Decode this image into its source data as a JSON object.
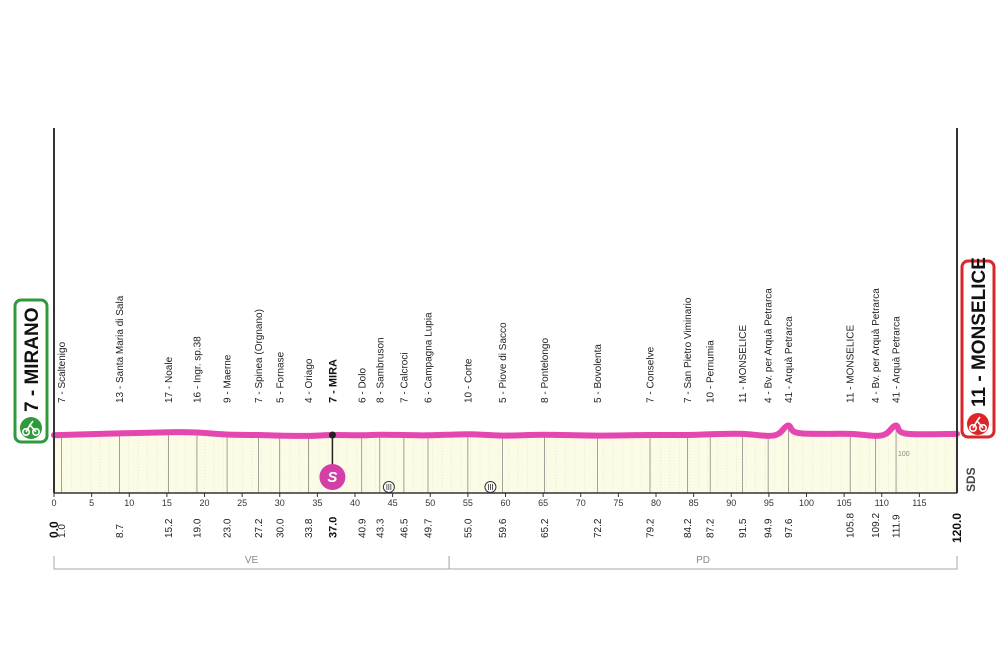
{
  "colors": {
    "profile_line": "#e447b0",
    "start_box": "#2f9a3b",
    "finish_box": "#d8262b",
    "sprint_badge": "#d23fa8",
    "area_fill": "#fbfbe6",
    "axis": "#333333",
    "region_line": "#aaaaaa"
  },
  "start": {
    "label": "7 - MIRANO",
    "km_label": "0.0",
    "icon": "cyclist-icon"
  },
  "finish": {
    "label": "11 - MONSELICE",
    "km_label": "120.0",
    "icon": "finish-cyclist-icon"
  },
  "sprint": {
    "badge": "S",
    "label": "7 - MIRA",
    "km_label": "37.0"
  },
  "logo_text": "SDS",
  "altitude_label": "100",
  "regions": [
    {
      "label": "VE",
      "from_km": 0,
      "to_km": 52.5
    },
    {
      "label": "PD",
      "from_km": 52.5,
      "to_km": 120
    }
  ],
  "chart_data": {
    "type": "area",
    "title": "",
    "xlabel": "",
    "ylabel": "",
    "xlim": [
      0,
      120
    ],
    "x_ticks": [
      0,
      5,
      10,
      15,
      20,
      25,
      30,
      35,
      40,
      45,
      50,
      55,
      60,
      65,
      70,
      75,
      80,
      85,
      90,
      95,
      100,
      105,
      110,
      115
    ],
    "profile": [
      {
        "km": 0,
        "alt": 7
      },
      {
        "km": 1.0,
        "alt": 7
      },
      {
        "km": 8.7,
        "alt": 13
      },
      {
        "km": 15.2,
        "alt": 17
      },
      {
        "km": 19.0,
        "alt": 16
      },
      {
        "km": 23.0,
        "alt": 9
      },
      {
        "km": 27.2,
        "alt": 7
      },
      {
        "km": 30.0,
        "alt": 5
      },
      {
        "km": 33.8,
        "alt": 4
      },
      {
        "km": 37.0,
        "alt": 7
      },
      {
        "km": 40.9,
        "alt": 6
      },
      {
        "km": 43.3,
        "alt": 8
      },
      {
        "km": 46.5,
        "alt": 7
      },
      {
        "km": 49.7,
        "alt": 6
      },
      {
        "km": 55.0,
        "alt": 10
      },
      {
        "km": 59.6,
        "alt": 5
      },
      {
        "km": 65.2,
        "alt": 8
      },
      {
        "km": 72.2,
        "alt": 5
      },
      {
        "km": 79.2,
        "alt": 7
      },
      {
        "km": 84.2,
        "alt": 7
      },
      {
        "km": 87.2,
        "alt": 10
      },
      {
        "km": 91.5,
        "alt": 11
      },
      {
        "km": 94.9,
        "alt": 4
      },
      {
        "km": 96.3,
        "alt": 12
      },
      {
        "km": 97.6,
        "alt": 41
      },
      {
        "km": 99.0,
        "alt": 14
      },
      {
        "km": 105.8,
        "alt": 11
      },
      {
        "km": 109.2,
        "alt": 4
      },
      {
        "km": 110.6,
        "alt": 12
      },
      {
        "km": 111.9,
        "alt": 41
      },
      {
        "km": 113.2,
        "alt": 12
      },
      {
        "km": 120.0,
        "alt": 11
      }
    ],
    "waypoints": [
      {
        "km": 1.0,
        "km_label": "1.0",
        "label": "7 - Scaltenigo"
      },
      {
        "km": 8.7,
        "km_label": "8.7",
        "label": "13 - Santa Maria di Sala"
      },
      {
        "km": 15.2,
        "km_label": "15.2",
        "label": "17 - Noale"
      },
      {
        "km": 19.0,
        "km_label": "19.0",
        "label": "16 - Ingr. sp.38"
      },
      {
        "km": 23.0,
        "km_label": "23.0",
        "label": "9 - Maerne"
      },
      {
        "km": 27.2,
        "km_label": "27.2",
        "label": "7 - Spinea (Orgnano)"
      },
      {
        "km": 30.0,
        "km_label": "30.0",
        "label": "5 - Fornase"
      },
      {
        "km": 33.8,
        "km_label": "33.8",
        "label": "4 - Oriago"
      },
      {
        "km": 40.9,
        "km_label": "40.9",
        "label": "6 - Dolo"
      },
      {
        "km": 43.3,
        "km_label": "43.3",
        "label": "8 - Sambruson"
      },
      {
        "km": 46.5,
        "km_label": "46.5",
        "label": "7 - Calcroci"
      },
      {
        "km": 49.7,
        "km_label": "49.7",
        "label": "6 - Campagna Lupia"
      },
      {
        "km": 55.0,
        "km_label": "55.0",
        "label": "10 - Corte"
      },
      {
        "km": 59.6,
        "km_label": "59.6",
        "label": "5 - Piove di Sacco"
      },
      {
        "km": 65.2,
        "km_label": "65.2",
        "label": "8 - Pontelongo"
      },
      {
        "km": 72.2,
        "km_label": "72.2",
        "label": "5 - Bovolenta"
      },
      {
        "km": 79.2,
        "km_label": "79.2",
        "label": "7 - Conselve"
      },
      {
        "km": 84.2,
        "km_label": "84.2",
        "label": "7 - San Pietro Viminario"
      },
      {
        "km": 87.2,
        "km_label": "87.2",
        "label": "10 - Pernumia"
      },
      {
        "km": 91.5,
        "km_label": "91.5",
        "label": "11 - MONSELICE"
      },
      {
        "km": 94.9,
        "km_label": "94.9",
        "label": "4 - Bv. per Arquà  Petrarca"
      },
      {
        "km": 97.6,
        "km_label": "97.6",
        "label": "41 - Arquà Petrarca"
      },
      {
        "km": 105.8,
        "km_label": "105.8",
        "label": "11 - MONSELICE"
      },
      {
        "km": 109.2,
        "km_label": "109.2",
        "label": "4 - Bv. per Arquà  Petrarca"
      },
      {
        "km": 111.9,
        "km_label": "111.9",
        "label": "41 - Arquà Petrarca"
      }
    ],
    "service_points": [
      {
        "km": 44.5,
        "icon": "water-bottle-icon"
      },
      {
        "km": 58.0,
        "icon": "water-bottle-icon"
      }
    ]
  }
}
